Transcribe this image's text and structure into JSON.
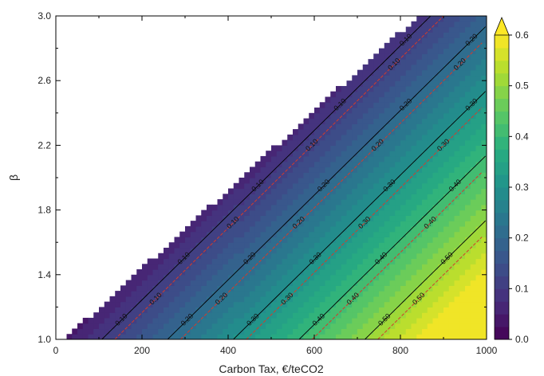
{
  "chart_data": {
    "type": "heatmap",
    "subtype": "filled-contour",
    "xlabel": "Carbon Tax, €/teCO2",
    "ylabel": "β",
    "xlim": [
      0,
      1000
    ],
    "ylim": [
      1.0,
      3.0
    ],
    "x_ticks": [
      "0",
      "200",
      "400",
      "600",
      "800",
      "1000"
    ],
    "y_ticks": [
      "1.0",
      "1.4",
      "1.8",
      "2.2",
      "2.6",
      "3.0"
    ],
    "colorbar": {
      "min": 0.0,
      "max": 0.6,
      "extend": "max",
      "ticks": [
        "0.0",
        "0.1",
        "0.2",
        "0.3",
        "0.4",
        "0.5",
        "0.6"
      ],
      "colormap": "viridis",
      "levels": 24,
      "colors": [
        "#440154",
        "#472d7b",
        "#3b528b",
        "#2c728e",
        "#21918c",
        "#28ae80",
        "#5ec962",
        "#addc30",
        "#fde725"
      ]
    },
    "valid_region": "x >= 410 * (beta - 0.95)",
    "black_contours": {
      "levels": [
        0.1,
        0.2,
        0.3,
        0.4,
        0.5
      ],
      "labels": [
        "0.10",
        "0.20",
        "0.30",
        "0.40",
        "0.50"
      ],
      "color": "#000000"
    },
    "red_contours": {
      "levels": [
        0.1,
        0.2,
        0.3,
        0.4,
        0.5
      ],
      "labels": [
        "0.10",
        "0.20",
        "0.30",
        "0.40",
        "0.50"
      ],
      "color": "#d43c2a",
      "style": "dashed"
    },
    "field_model": "value = 0.655 * x/1000 - 0.25 * (beta - 1.0) + 0.03"
  }
}
